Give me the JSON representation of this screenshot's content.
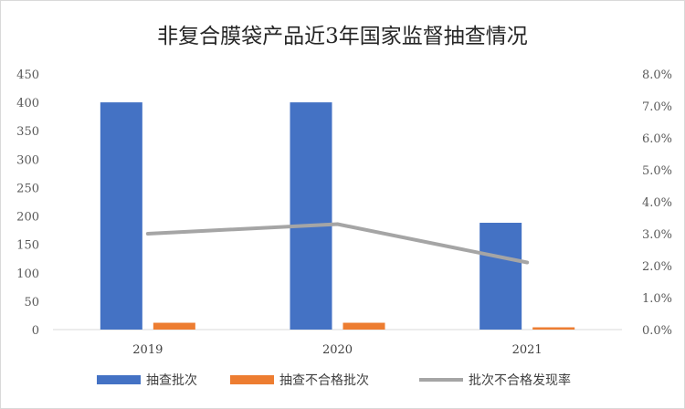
{
  "chart_data": {
    "type": "bar",
    "title": "非复合膜袋产品近3年国家监督抽查情况",
    "categories": [
      "2019",
      "2020",
      "2021"
    ],
    "series": [
      {
        "name": "抽查批次",
        "kind": "bar",
        "axis": "left",
        "color": "#4472C4",
        "values": [
          400,
          400,
          188
        ]
      },
      {
        "name": "抽查不合格批次",
        "kind": "bar",
        "axis": "left",
        "color": "#ED7D31",
        "values": [
          12,
          12,
          4
        ]
      },
      {
        "name": "批次不合格发现率",
        "kind": "line",
        "axis": "right",
        "color": "#A5A5A5",
        "values": [
          3.0,
          3.3,
          2.1
        ]
      }
    ],
    "y_left": {
      "min": 0,
      "max": 450,
      "step": 50,
      "ticks": [
        "0",
        "50",
        "100",
        "150",
        "200",
        "250",
        "300",
        "350",
        "400",
        "450"
      ]
    },
    "y_right": {
      "min": 0,
      "max": 8,
      "step": 1,
      "ticks": [
        "0.0%",
        "1.0%",
        "2.0%",
        "3.0%",
        "4.0%",
        "5.0%",
        "6.0%",
        "7.0%",
        "8.0%"
      ]
    },
    "grid": false,
    "legend": "bottom"
  }
}
